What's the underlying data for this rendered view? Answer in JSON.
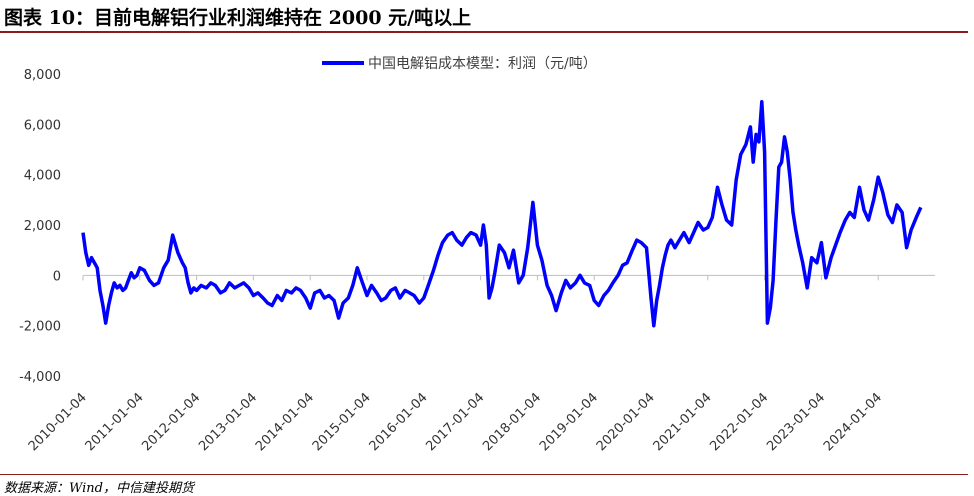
{
  "title": "图表 10：目前电解铝行业利润维持在 2000 元/吨以上",
  "source": "数据来源：Wind，中信建投期货",
  "chart_data": {
    "type": "line",
    "title": "图表 10：目前电解铝行业利润维持在 2000 元/吨以上",
    "xlabel": "",
    "ylabel": "",
    "ylim": [
      -4000,
      8000
    ],
    "yticks": [
      -4000,
      -2000,
      0,
      2000,
      4000,
      6000,
      8000
    ],
    "ytick_labels": [
      "-4,000",
      "-2,000",
      "0",
      "2,000",
      "4,000",
      "6,000",
      "8,000"
    ],
    "xlim": [
      2010.0,
      2025.0
    ],
    "xtick_labels": [
      "2010-01-04",
      "2011-01-04",
      "2012-01-04",
      "2013-01-04",
      "2014-01-04",
      "2015-01-04",
      "2016-01-04",
      "2017-01-04",
      "2018-01-04",
      "2019-01-04",
      "2020-01-04",
      "2021-01-04",
      "2022-01-04",
      "2023-01-04",
      "2024-01-04"
    ],
    "grid": false,
    "legend_position": "top-center",
    "series": [
      {
        "name": "中国电解铝成本模型：利润（元/吨）",
        "color": "#0000ff",
        "x": [
          2010.0,
          2010.05,
          2010.1,
          2010.15,
          2010.2,
          2010.25,
          2010.3,
          2010.35,
          2010.4,
          2010.45,
          2010.5,
          2010.55,
          2010.6,
          2010.65,
          2010.7,
          2010.75,
          2010.8,
          2010.85,
          2010.9,
          2010.95,
          2011.0,
          2011.08,
          2011.17,
          2011.25,
          2011.33,
          2011.42,
          2011.5,
          2011.58,
          2011.67,
          2011.75,
          2011.8,
          2011.85,
          2011.9,
          2011.95,
          2012.0,
          2012.08,
          2012.17,
          2012.25,
          2012.33,
          2012.42,
          2012.5,
          2012.58,
          2012.67,
          2012.75,
          2012.83,
          2012.92,
          2013.0,
          2013.08,
          2013.17,
          2013.25,
          2013.33,
          2013.42,
          2013.5,
          2013.58,
          2013.67,
          2013.75,
          2013.83,
          2013.92,
          2014.0,
          2014.08,
          2014.17,
          2014.25,
          2014.33,
          2014.42,
          2014.5,
          2014.58,
          2014.67,
          2014.75,
          2014.83,
          2014.92,
          2015.0,
          2015.08,
          2015.17,
          2015.25,
          2015.33,
          2015.42,
          2015.5,
          2015.58,
          2015.67,
          2015.75,
          2015.83,
          2015.92,
          2016.0,
          2016.08,
          2016.17,
          2016.25,
          2016.33,
          2016.42,
          2016.5,
          2016.58,
          2016.67,
          2016.75,
          2016.83,
          2016.92,
          2017.0,
          2017.05,
          2017.1,
          2017.15,
          2017.2,
          2017.25,
          2017.33,
          2017.42,
          2017.5,
          2017.58,
          2017.67,
          2017.75,
          2017.83,
          2017.92,
          2018.0,
          2018.08,
          2018.17,
          2018.25,
          2018.33,
          2018.42,
          2018.5,
          2018.58,
          2018.67,
          2018.75,
          2018.83,
          2018.92,
          2019.0,
          2019.08,
          2019.17,
          2019.25,
          2019.33,
          2019.42,
          2019.5,
          2019.58,
          2019.67,
          2019.75,
          2019.83,
          2019.92,
          2020.0,
          2020.05,
          2020.1,
          2020.15,
          2020.2,
          2020.25,
          2020.3,
          2020.35,
          2020.42,
          2020.5,
          2020.58,
          2020.67,
          2020.75,
          2020.83,
          2020.92,
          2021.0,
          2021.08,
          2021.17,
          2021.25,
          2021.33,
          2021.42,
          2021.5,
          2021.58,
          2021.67,
          2021.75,
          2021.8,
          2021.85,
          2021.9,
          2021.95,
          2022.0,
          2022.05,
          2022.1,
          2022.15,
          2022.2,
          2022.25,
          2022.3,
          2022.35,
          2022.4,
          2022.45,
          2022.5,
          2022.55,
          2022.6,
          2022.67,
          2022.75,
          2022.83,
          2022.92,
          2023.0,
          2023.08,
          2023.17,
          2023.25,
          2023.33,
          2023.42,
          2023.5,
          2023.58,
          2023.67,
          2023.75,
          2023.83,
          2023.92,
          2024.0,
          2024.08,
          2024.17,
          2024.25,
          2024.33,
          2024.42,
          2024.5,
          2024.58,
          2024.67,
          2024.75
        ],
        "values": [
          1700,
          900,
          400,
          700,
          500,
          300,
          -600,
          -1200,
          -1900,
          -1200,
          -700,
          -300,
          -500,
          -400,
          -600,
          -500,
          -200,
          100,
          -100,
          0,
          300,
          200,
          -200,
          -400,
          -300,
          300,
          600,
          1600,
          900,
          500,
          300,
          -300,
          -700,
          -500,
          -600,
          -400,
          -500,
          -300,
          -400,
          -700,
          -600,
          -300,
          -500,
          -400,
          -300,
          -500,
          -800,
          -700,
          -900,
          -1100,
          -1200,
          -800,
          -1000,
          -600,
          -700,
          -500,
          -600,
          -900,
          -1300,
          -700,
          -600,
          -900,
          -800,
          -1000,
          -1700,
          -1100,
          -900,
          -400,
          300,
          -300,
          -800,
          -400,
          -700,
          -1000,
          -900,
          -600,
          -500,
          -900,
          -600,
          -700,
          -800,
          -1100,
          -900,
          -400,
          200,
          800,
          1300,
          1600,
          1700,
          1400,
          1200,
          1500,
          1700,
          1600,
          1200,
          2000,
          1200,
          -900,
          -500,
          100,
          1200,
          900,
          300,
          1000,
          -300,
          0,
          1100,
          2900,
          1200,
          600,
          -400,
          -800,
          -1400,
          -700,
          -200,
          -500,
          -300,
          0,
          -300,
          -400,
          -1000,
          -1200,
          -800,
          -600,
          -300,
          0,
          400,
          500,
          1000,
          1400,
          1300,
          1100,
          -900,
          -2000,
          -1000,
          -400,
          300,
          800,
          1200,
          1400,
          1100,
          1400,
          1700,
          1300,
          1700,
          2100,
          1800,
          1900,
          2300,
          3500,
          2800,
          2200,
          2000,
          3800,
          4800,
          5200,
          5900,
          4500,
          5600,
          5300,
          6900,
          4900,
          -1900,
          -1300,
          -200,
          2200,
          4300,
          4500,
          5500,
          4900,
          3800,
          2500,
          1800,
          1200,
          500,
          -500,
          700,
          500,
          1300,
          -100,
          700,
          1200,
          1700,
          2200,
          2500,
          2300,
          3500,
          2600,
          2200,
          3000,
          3900,
          3300,
          2400,
          2100,
          2800,
          2500,
          1100,
          1800,
          2300,
          2700
        ]
      }
    ]
  }
}
